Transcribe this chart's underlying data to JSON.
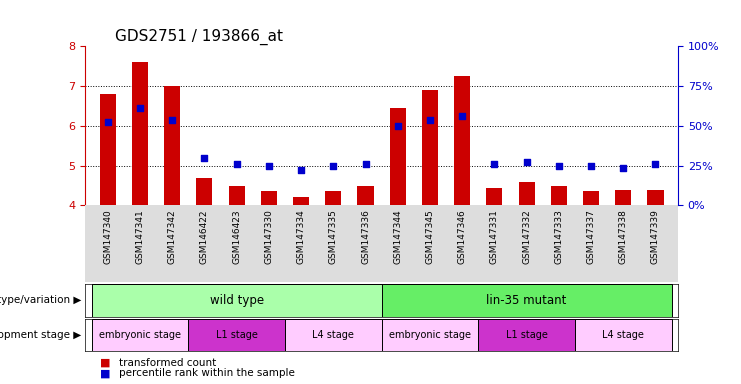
{
  "title": "GDS2751 / 193866_at",
  "samples": [
    "GSM147340",
    "GSM147341",
    "GSM147342",
    "GSM146422",
    "GSM146423",
    "GSM147330",
    "GSM147334",
    "GSM147335",
    "GSM147336",
    "GSM147344",
    "GSM147345",
    "GSM147346",
    "GSM147331",
    "GSM147332",
    "GSM147333",
    "GSM147337",
    "GSM147338",
    "GSM147339"
  ],
  "transformed_count": [
    6.8,
    7.6,
    7.0,
    4.7,
    4.5,
    4.35,
    4.2,
    4.35,
    4.5,
    6.45,
    6.9,
    7.25,
    4.45,
    4.6,
    4.5,
    4.35,
    4.4,
    4.4
  ],
  "percentile_rank": [
    6.1,
    6.45,
    6.15,
    5.2,
    5.05,
    5.0,
    4.9,
    5.0,
    5.05,
    6.0,
    6.15,
    6.25,
    5.05,
    5.1,
    5.0,
    5.0,
    4.95,
    5.05
  ],
  "ylim": [
    4,
    8
  ],
  "yticks": [
    4,
    5,
    6,
    7,
    8
  ],
  "right_yticks": [
    0,
    25,
    50,
    75,
    100
  ],
  "bar_color": "#cc0000",
  "dot_color": "#0000cc",
  "bar_width": 0.5,
  "genotype_groups": [
    {
      "label": "wild type",
      "start": 0,
      "end": 9,
      "color": "#aaffaa"
    },
    {
      "label": "lin-35 mutant",
      "start": 9,
      "end": 18,
      "color": "#66ee66"
    }
  ],
  "dev_stage_groups": [
    {
      "label": "embryonic stage",
      "start": 0,
      "end": 3,
      "color": "#ffaaff"
    },
    {
      "label": "L1 stage",
      "start": 3,
      "end": 6,
      "color": "#ee44ee"
    },
    {
      "label": "L4 stage",
      "start": 6,
      "end": 9,
      "color": "#ffaaff"
    },
    {
      "label": "embryonic stage",
      "start": 9,
      "end": 12,
      "color": "#ffaaff"
    },
    {
      "label": "L1 stage",
      "start": 12,
      "end": 15,
      "color": "#ee44ee"
    },
    {
      "label": "L4 stage",
      "start": 15,
      "end": 18,
      "color": "#ffaaff"
    }
  ],
  "background_color": "#ffffff",
  "tick_label_color_left": "#cc0000",
  "tick_label_color_right": "#0000cc",
  "title_fontsize": 11,
  "tick_fontsize": 8,
  "sample_fontsize": 6.5,
  "label_fontsize": 8.5
}
